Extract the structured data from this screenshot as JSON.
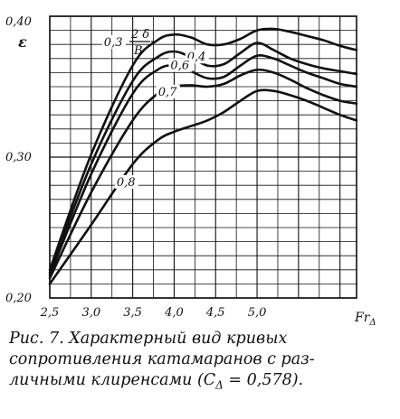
{
  "chart_data": {
    "type": "line",
    "ylabel": "ε",
    "xlabel": "Fr",
    "xlabel_sub": "Δ",
    "xlim": [
      2.5,
      6.2
    ],
    "ylim": [
      0.2,
      0.4
    ],
    "x_ticks": [
      2.5,
      3.0,
      3.5,
      4.0,
      4.5,
      5.0
    ],
    "x_tick_labels": [
      "2,5",
      "3,0",
      "3,5",
      "4,0",
      "4,5",
      "5,0"
    ],
    "y_ticks": [
      0.2,
      0.3,
      0.4
    ],
    "y_tick_labels": [
      "0,20",
      "0,30",
      "0,40"
    ],
    "grid": true,
    "param_label_num": "2 δ",
    "param_label_den": "B",
    "series": [
      {
        "name": "0,3",
        "x": [
          2.5,
          3.0,
          3.5,
          3.8,
          4.0,
          4.2,
          4.4,
          4.6,
          4.8,
          5.0,
          5.2,
          5.4,
          5.6,
          5.8,
          6.0,
          6.2
        ],
        "y": [
          0.22,
          0.302,
          0.365,
          0.383,
          0.387,
          0.385,
          0.38,
          0.38,
          0.384,
          0.39,
          0.391,
          0.389,
          0.386,
          0.383,
          0.379,
          0.376
        ]
      },
      {
        "name": "0,4",
        "x": [
          2.5,
          3.0,
          3.5,
          3.8,
          4.0,
          4.2,
          4.4,
          4.6,
          4.8,
          5.0,
          5.2,
          5.4,
          5.6,
          5.8,
          6.0,
          6.2
        ],
        "y": [
          0.218,
          0.295,
          0.354,
          0.371,
          0.375,
          0.371,
          0.365,
          0.366,
          0.374,
          0.381,
          0.376,
          0.37,
          0.366,
          0.363,
          0.361,
          0.359
        ]
      },
      {
        "name": "0,6",
        "x": [
          2.5,
          3.0,
          3.5,
          3.8,
          4.0,
          4.2,
          4.4,
          4.6,
          4.8,
          5.0,
          5.2,
          5.4,
          5.6,
          5.8,
          6.0,
          6.2
        ],
        "y": [
          0.216,
          0.288,
          0.345,
          0.362,
          0.365,
          0.361,
          0.356,
          0.357,
          0.365,
          0.372,
          0.37,
          0.365,
          0.36,
          0.356,
          0.352,
          0.35
        ]
      },
      {
        "name": "0,7",
        "x": [
          2.5,
          3.0,
          3.5,
          3.8,
          4.0,
          4.2,
          4.4,
          4.6,
          4.8,
          5.0,
          5.2,
          5.4,
          5.6,
          5.8,
          6.0,
          6.2
        ],
        "y": [
          0.214,
          0.275,
          0.326,
          0.345,
          0.35,
          0.351,
          0.35,
          0.352,
          0.358,
          0.362,
          0.36,
          0.355,
          0.349,
          0.344,
          0.34,
          0.338
        ]
      },
      {
        "name": "0,8",
        "x": [
          2.5,
          3.0,
          3.5,
          3.8,
          4.0,
          4.2,
          4.4,
          4.6,
          4.8,
          5.0,
          5.2,
          5.4,
          5.6,
          5.8,
          6.0,
          6.2
        ],
        "y": [
          0.21,
          0.252,
          0.295,
          0.312,
          0.318,
          0.322,
          0.326,
          0.332,
          0.34,
          0.347,
          0.347,
          0.344,
          0.34,
          0.335,
          0.33,
          0.326
        ]
      }
    ]
  },
  "caption": {
    "line1": "Рис. 7. Характерный вид кривых",
    "line2": "сопротивления катамаранов с раз-",
    "line3": "личными клиренсами (C",
    "line3_sub": "Δ",
    "line3_end": " = 0,578)."
  }
}
